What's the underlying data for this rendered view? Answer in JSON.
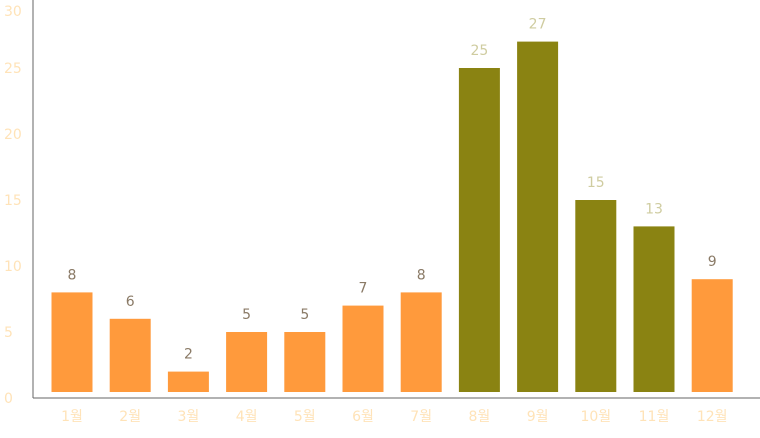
{
  "chart_data": {
    "type": "bar",
    "categories": [
      "1월",
      "2월",
      "3월",
      "4월",
      "5월",
      "6월",
      "7월",
      "8월",
      "9월",
      "10월",
      "11월",
      "12월"
    ],
    "values": [
      8,
      6,
      2,
      5,
      5,
      7,
      8,
      25,
      27,
      15,
      13,
      9
    ],
    "value_labels": [
      "8",
      "6",
      "2",
      "5",
      "5",
      "7",
      "8",
      "25",
      "27",
      "15",
      "13",
      "9"
    ],
    "highlight": [
      false,
      false,
      false,
      false,
      false,
      false,
      false,
      true,
      true,
      true,
      true,
      false
    ],
    "y_ticks": [
      "0",
      "5",
      "10",
      "15",
      "20",
      "25",
      "30"
    ],
    "ylim": [
      0,
      30
    ],
    "grid": false,
    "legend": "none",
    "title": "",
    "xlabel": "",
    "ylabel": ""
  },
  "colors": {
    "bar_default": "#FF9A3C",
    "bar_highlight": "#8A8312",
    "label_default": "#8A7A66",
    "label_highlight": "#CFCCA0",
    "axis_tick_label": "#FFE3B8",
    "axis_line": "#666666"
  }
}
